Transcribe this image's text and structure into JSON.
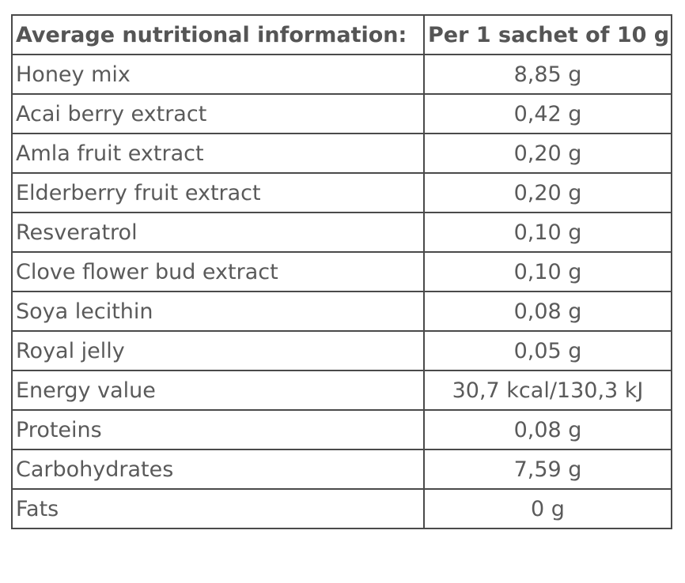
{
  "table": {
    "header": {
      "col1": "Average nutritional information:",
      "col2": "Per 1 sachet of 10 g"
    },
    "rows": [
      {
        "label": "Honey mix",
        "value": "8,85 g"
      },
      {
        "label": "Acai berry extract",
        "value": "0,42 g"
      },
      {
        "label": "Amla fruit extract",
        "value": "0,20 g"
      },
      {
        "label": "Elderberry fruit extract",
        "value": "0,20 g"
      },
      {
        "label": "Resveratrol",
        "value": "0,10 g"
      },
      {
        "label": "Clove flower bud extract",
        "value": "0,10 g"
      },
      {
        "label": "Soya lecithin",
        "value": "0,08 g"
      },
      {
        "label": "Royal jelly",
        "value": "0,05 g"
      },
      {
        "label": "Energy value",
        "value": "30,7 kcal/130,3 kJ"
      },
      {
        "label": "Proteins",
        "value": "0,08 g"
      },
      {
        "label": "Carbohydrates",
        "value": "7,59 g"
      },
      {
        "label": "Fats",
        "value": "0 g"
      }
    ]
  }
}
